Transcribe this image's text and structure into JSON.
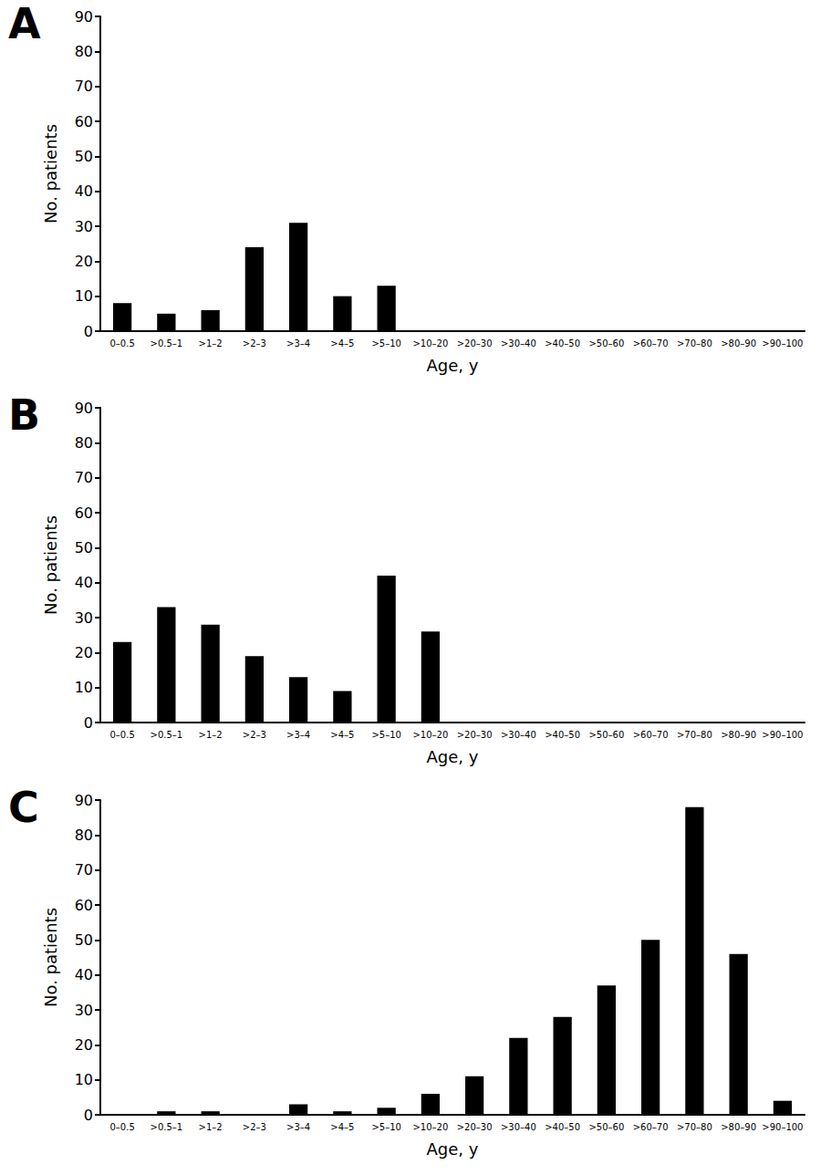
{
  "chart_data": [
    {
      "type": "bar",
      "title": "A",
      "categories": [
        "0–0.5",
        ">0.5–1",
        ">1–2",
        ">2–3",
        ">3–4",
        ">4–5",
        ">5–10",
        ">10–20",
        ">20–30",
        ">30–40",
        ">40–50",
        ">50–60",
        ">60–70",
        ">70–80",
        ">80–90",
        ">90–100"
      ],
      "values": [
        8,
        5,
        6,
        24,
        31,
        10,
        13,
        0,
        0,
        0,
        0,
        0,
        0,
        0,
        0,
        0
      ],
      "color": "#000000",
      "xlabel": "Age, y",
      "ylabel": "No. patients",
      "ylim": [
        0,
        90
      ],
      "yticks": [
        0,
        10,
        20,
        30,
        40,
        50,
        60,
        70,
        80,
        90
      ],
      "grid": false
    },
    {
      "type": "bar",
      "title": "B",
      "categories": [
        "0–0.5",
        ">0.5–1",
        ">1–2",
        ">2–3",
        ">3–4",
        ">4–5",
        ">5–10",
        ">10–20",
        ">20–30",
        ">30–40",
        ">40–50",
        ">50–60",
        ">60–70",
        ">70–80",
        ">80–90",
        ">90–100"
      ],
      "values": [
        23,
        33,
        28,
        19,
        13,
        9,
        42,
        26,
        0,
        0,
        0,
        0,
        0,
        0,
        0,
        0
      ],
      "color": "#000000",
      "xlabel": "Age, y",
      "ylabel": "No. patients",
      "ylim": [
        0,
        90
      ],
      "yticks": [
        0,
        10,
        20,
        30,
        40,
        50,
        60,
        70,
        80,
        90
      ],
      "grid": false
    },
    {
      "type": "bar",
      "title": "C",
      "categories": [
        "0–0.5",
        ">0.5–1",
        ">1–2",
        ">2–3",
        ">3–4",
        ">4–5",
        ">5–10",
        ">10–20",
        ">20–30",
        ">30–40",
        ">40–50",
        ">50–60",
        ">60–70",
        ">70–80",
        ">80–90",
        ">90–100"
      ],
      "values": [
        0,
        1,
        1,
        0,
        3,
        1,
        2,
        6,
        11,
        22,
        28,
        37,
        50,
        88,
        46,
        4
      ],
      "color": "#000000",
      "xlabel": "Age, y",
      "ylabel": "No. patients",
      "ylim": [
        0,
        90
      ],
      "yticks": [
        0,
        10,
        20,
        30,
        40,
        50,
        60,
        70,
        80,
        90
      ],
      "grid": false
    }
  ]
}
